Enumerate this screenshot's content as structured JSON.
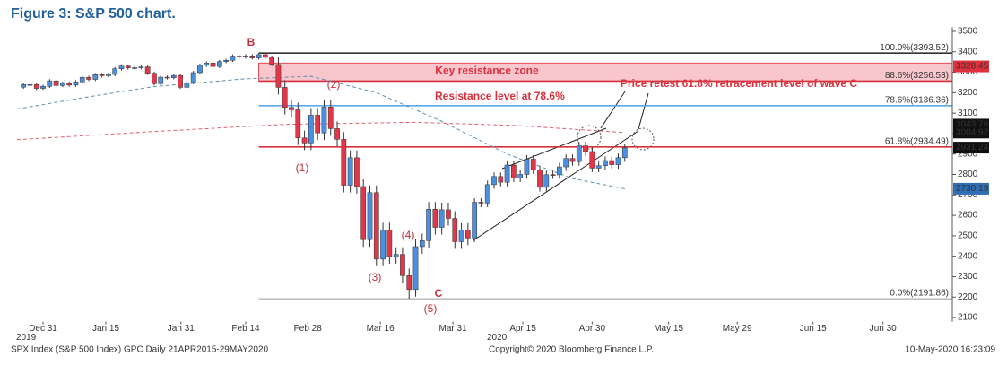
{
  "chart_data": {
    "type": "candlestick",
    "title": "Figure 3: S&P 500 chart.",
    "x": [
      0,
      1,
      2,
      3,
      4,
      5,
      6,
      7,
      8,
      9,
      10,
      11,
      12,
      13,
      14,
      15,
      16,
      17,
      18,
      19,
      20,
      21,
      22,
      23,
      24,
      25,
      26,
      27,
      28,
      29,
      30,
      31,
      32,
      33,
      34,
      35,
      36,
      37,
      38,
      39,
      40,
      41,
      42,
      43,
      44,
      45,
      46,
      47,
      48,
      49,
      50,
      51,
      52,
      53,
      54,
      55,
      56,
      57,
      58,
      59,
      60,
      61,
      62,
      63,
      64,
      65,
      66,
      67,
      68,
      69,
      70,
      71,
      72,
      73,
      74,
      75,
      76,
      77,
      78,
      79,
      80,
      81,
      82,
      83,
      84,
      85,
      86,
      87,
      88,
      89,
      90,
      91,
      92
    ],
    "open": [
      3227,
      3240,
      3240,
      3221,
      3231,
      3258,
      3235,
      3246,
      3237,
      3253,
      3275,
      3265,
      3288,
      3283,
      3289,
      3317,
      3330,
      3321,
      3322,
      3326,
      3295,
      3244,
      3276,
      3273,
      3284,
      3226,
      3249,
      3298,
      3334,
      3345,
      3328,
      3352,
      3358,
      3379,
      3374,
      3380,
      3370,
      3386,
      3373,
      3338,
      3226,
      3128,
      3116,
      2979,
      2954,
      3090,
      3003,
      3130,
      3024,
      2972,
      2747,
      2882,
      2741,
      2481,
      2711,
      2386,
      2529,
      2398,
      2409,
      2305,
      2237,
      2447,
      2476,
      2630,
      2541,
      2627,
      2585,
      2471,
      2527,
      2489,
      2664,
      2660,
      2750,
      2790,
      2762,
      2846,
      2783,
      2800,
      2875,
      2823,
      2737,
      2799,
      2798,
      2837,
      2878,
      2863,
      2940,
      2912,
      2831,
      2843,
      2868,
      2848,
      2882
    ],
    "high": [
      3248,
      3248,
      3248,
      3239,
      3266,
      3266,
      3254,
      3254,
      3261,
      3283,
      3283,
      3296,
      3296,
      3297,
      3325,
      3338,
      3338,
      3330,
      3334,
      3334,
      3303,
      3284,
      3284,
      3292,
      3292,
      3257,
      3306,
      3342,
      3353,
      3353,
      3360,
      3366,
      3387,
      3387,
      3388,
      3388,
      3393.52,
      3390,
      3381,
      3373,
      3261,
      3163,
      3151,
      3014,
      3125,
      3125,
      3165,
      3165,
      3059,
      3007,
      2917,
      2917,
      2776,
      2746,
      2746,
      2564,
      2564,
      2444,
      2444,
      2340,
      2482,
      2511,
      2665,
      2665,
      2662,
      2662,
      2620,
      2562,
      2562,
      2684,
      2684,
      2770,
      2810,
      2810,
      2866,
      2866,
      2820,
      2895,
      2895,
      2843,
      2819,
      2819,
      2857,
      2898,
      2898,
      2960,
      2960,
      2932,
      2863,
      2888,
      2888,
      2902,
      2950
    ],
    "low": [
      3219,
      3232,
      3213,
      3213,
      3223,
      3227,
      3227,
      3229,
      3229,
      3245,
      3257,
      3257,
      3275,
      3275,
      3281,
      3309,
      3313,
      3313,
      3314,
      3287,
      3236,
      3236,
      3265,
      3265,
      3218,
      3218,
      3241,
      3290,
      3326,
      3320,
      3320,
      3344,
      3350,
      3366,
      3366,
      3362,
      3362,
      3365,
      3330,
      3191,
      3093,
      3081,
      2944,
      2919,
      2919,
      2968,
      2968,
      2989,
      2937,
      2712,
      2712,
      2706,
      2446,
      2446,
      2351,
      2351,
      2363,
      2363,
      2270,
      2191.86,
      2202,
      2412,
      2441,
      2506,
      2506,
      2550,
      2436,
      2436,
      2454,
      2469,
      2640,
      2640,
      2730,
      2742,
      2742,
      2763,
      2763,
      2780,
      2803,
      2717,
      2717,
      2778,
      2778,
      2817,
      2843,
      2843,
      2892,
      2811,
      2811,
      2823,
      2828,
      2828,
      2862
    ],
    "close": [
      3240,
      3240,
      3221,
      3231,
      3258,
      3235,
      3246,
      3237,
      3253,
      3275,
      3265,
      3288,
      3283,
      3289,
      3317,
      3330,
      3321,
      3322,
      3326,
      3295,
      3244,
      3276,
      3273,
      3284,
      3226,
      3249,
      3298,
      3334,
      3345,
      3328,
      3352,
      3358,
      3379,
      3374,
      3380,
      3370,
      3386,
      3373,
      3338,
      3226,
      3128,
      3116,
      2979,
      2954,
      3090,
      3003,
      3130,
      3024,
      2972,
      2747,
      2882,
      2741,
      2481,
      2711,
      2386,
      2529,
      2398,
      2409,
      2305,
      2237,
      2447,
      2476,
      2630,
      2541,
      2627,
      2585,
      2471,
      2527,
      2489,
      2664,
      2660,
      2750,
      2790,
      2762,
      2846,
      2783,
      2800,
      2875,
      2823,
      2737,
      2799,
      2798,
      2837,
      2878,
      2863,
      2940,
      2912,
      2831,
      2843,
      2868,
      2848,
      2882,
      2930
    ],
    "up_color": "#4a8fe0",
    "down_color": "#e0384a",
    "xlim": [
      -1.94,
      142.1
    ],
    "ylim": [
      2080,
      3520
    ],
    "xticks": [
      {
        "value": 3,
        "label": "Dec 31"
      },
      {
        "value": 12.6,
        "label": "Jan 15"
      },
      {
        "value": 24.1,
        "label": "Jan 31"
      },
      {
        "value": 34,
        "label": "Feb 14"
      },
      {
        "value": 43.5,
        "label": "Feb 28"
      },
      {
        "value": 54.6,
        "label": "Mar 16"
      },
      {
        "value": 65.7,
        "label": "Mar 31"
      },
      {
        "value": 76.4,
        "label": "Apr 15"
      },
      {
        "value": 87,
        "label": "Apr 30"
      },
      {
        "value": 98.7,
        "label": "May 15"
      },
      {
        "value": 109.2,
        "label": "May 29"
      },
      {
        "value": 120.8,
        "label": "Jun 15"
      },
      {
        "value": 131.5,
        "label": "Jun 30"
      }
    ],
    "yticks": [
      2100,
      2200,
      2300,
      2400,
      2500,
      2600,
      2700,
      2800,
      2900,
      3000,
      3100,
      3200,
      3300,
      3400,
      3500
    ],
    "year_labels": [
      "2019",
      "2020"
    ],
    "moving_averages": [
      {
        "color": "#5b8fb0",
        "x": [
          -1,
          10,
          20,
          34,
          44,
          54,
          64,
          74,
          84,
          92
        ],
        "values": [
          3120,
          3180,
          3230,
          3268,
          3280,
          3200,
          3060,
          2900,
          2780,
          2730
        ]
      },
      {
        "color": "#e06070",
        "x": [
          -1,
          20,
          40,
          60,
          75,
          92
        ],
        "values": [
          2970,
          3010,
          3045,
          3055,
          3040,
          3005
        ]
      }
    ],
    "zone": {
      "label": "Key resistance zone",
      "low": 3256.53,
      "high": 3345
    },
    "levels": [
      {
        "value": 3393.52,
        "label": "100.0%(3393.52)",
        "color": "#333333"
      },
      {
        "value": 3256.53,
        "label": "88.6%(3256.53)",
        "color": "#d9303e"
      },
      {
        "value": 3136.36,
        "label": "78.6%(3136.36)",
        "color": "#5aa9e6"
      },
      {
        "value": 2934.49,
        "label": "61.8%(2934.49)",
        "color": "#d9303e"
      },
      {
        "value": 2191.86,
        "label": "0.0%(2191.86)",
        "color": "#999999"
      }
    ],
    "price_tags": [
      {
        "value": 3328.45,
        "color": "#e0303c"
      },
      {
        "value": 3043.78,
        "color": "#111111"
      },
      {
        "value": 3004.92,
        "color": "#111111"
      },
      {
        "value": 2931.24,
        "color": "#111111"
      },
      {
        "value": 2730.19,
        "color": "#2f6db5"
      }
    ],
    "annotations": [
      "Resistance level at 78.6%",
      "Price retest 61.8% retracement level of wave C"
    ],
    "wave_labels": [
      "B",
      "(2)",
      "(1)",
      "(3)",
      "(4)",
      "(5)",
      "C"
    ],
    "footer": {
      "left": "SPX Index (S&P 500 Index) GPC  Daily 21APR2015-29MAY2020",
      "center": "Copyright© 2020 Bloomberg Finance L.P.",
      "right": "10-May-2020 16:23:09"
    }
  }
}
